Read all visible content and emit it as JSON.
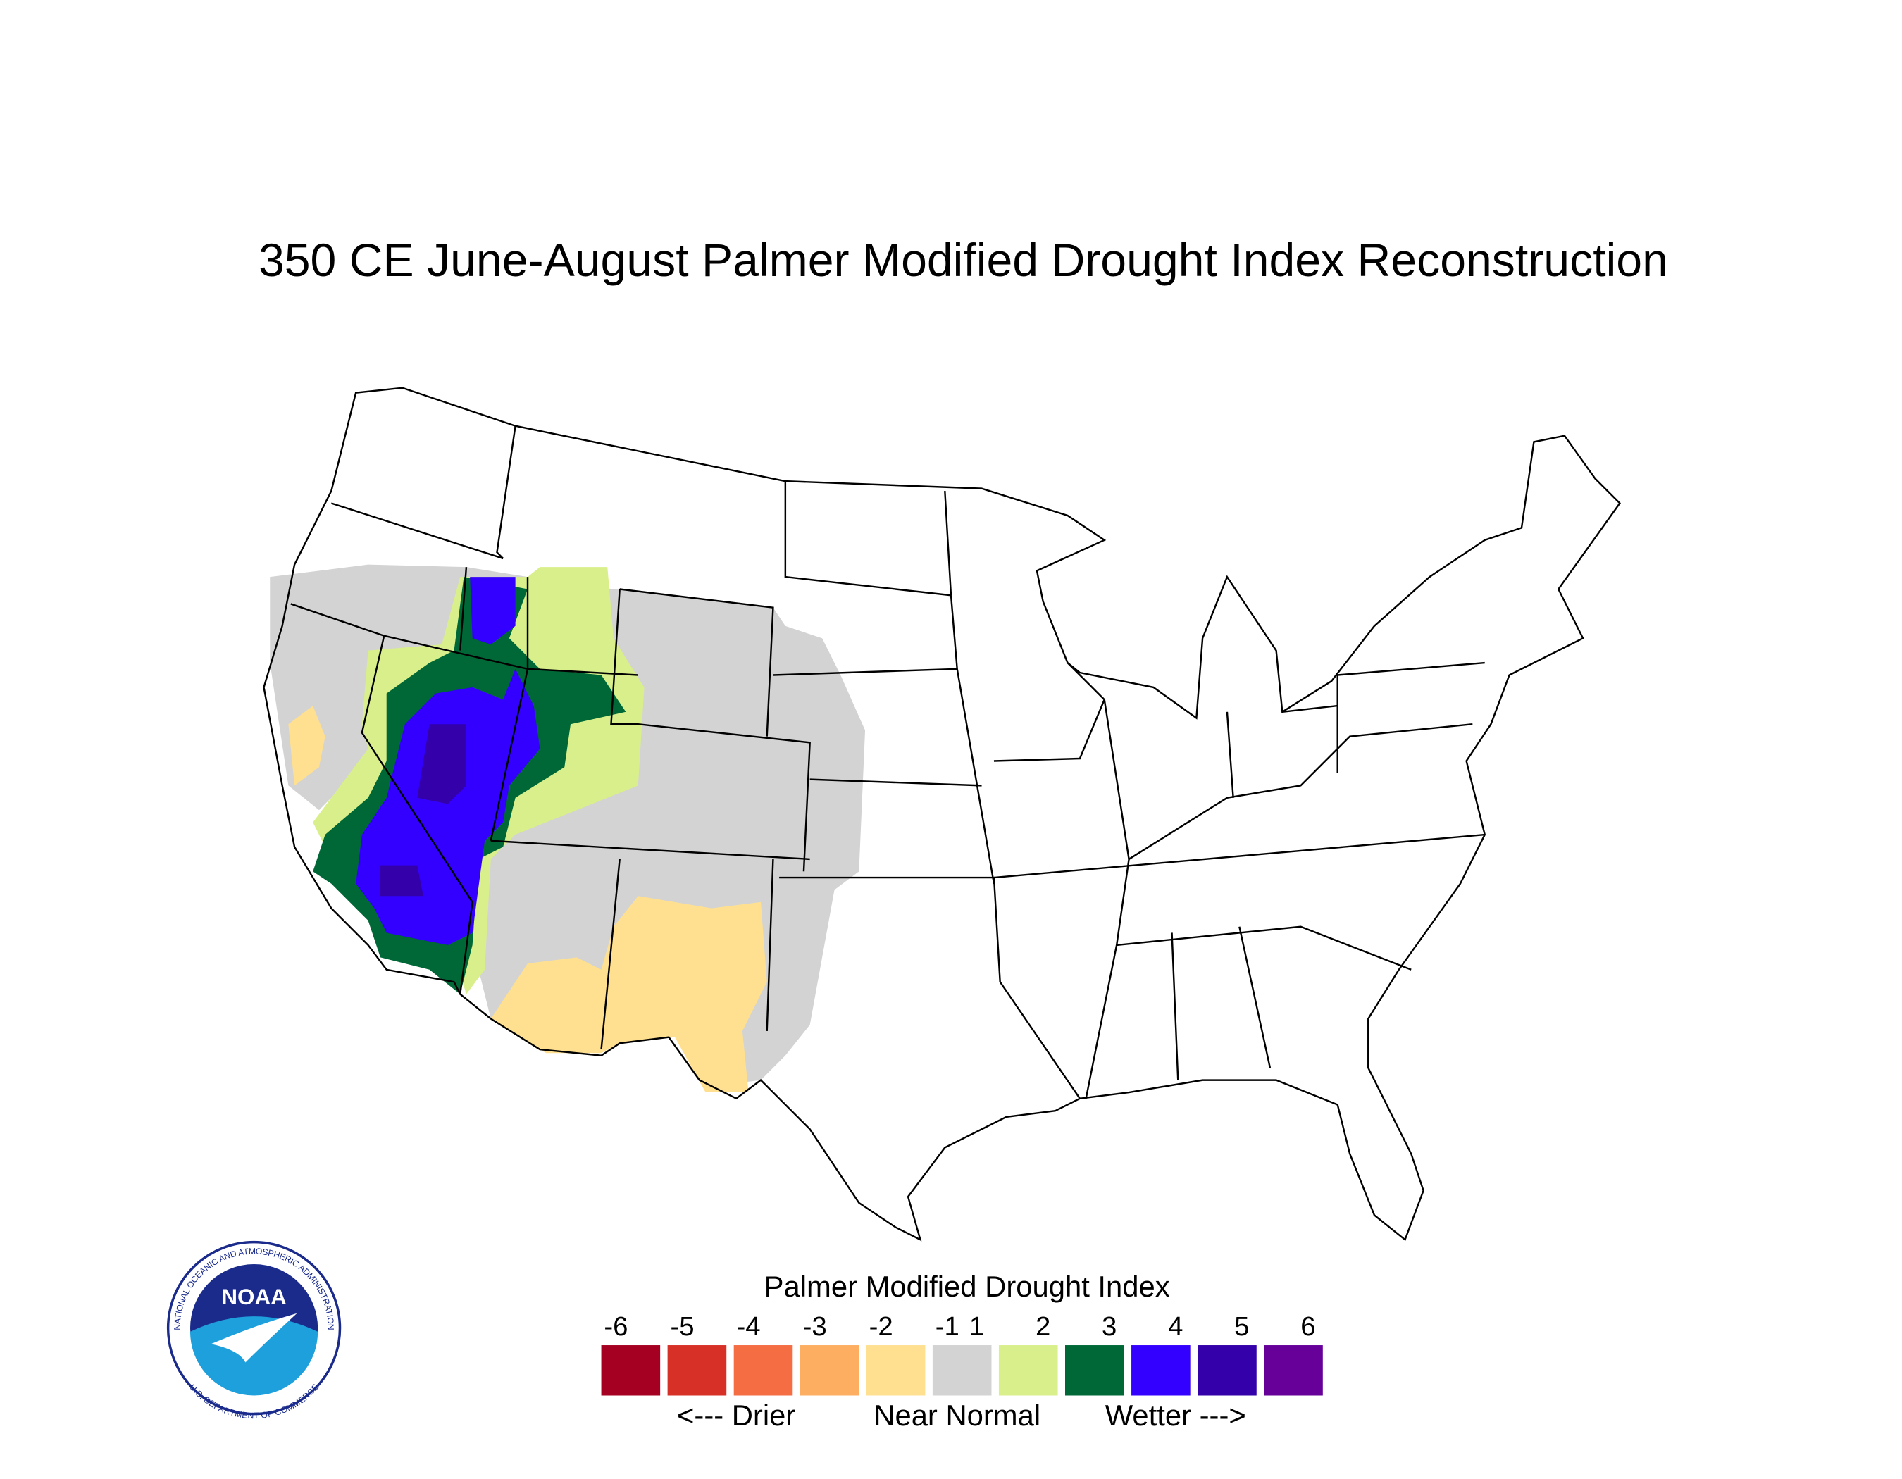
{
  "header": {
    "title": "350 CE  June-August  Palmer Modified Drought Index Reconstruction"
  },
  "legend": {
    "title": "Palmer Modified Drought Index",
    "ticks": [
      -6,
      -5,
      -4,
      -3,
      -2,
      -1,
      1,
      2,
      3,
      4,
      5,
      6
    ],
    "colors": [
      "#a50021",
      "#d73027",
      "#f46d43",
      "#fdae61",
      "#fee090",
      "#d3d3d3",
      "#d9ef8b",
      "#006837",
      "#3300ff",
      "#3300aa",
      "#660099"
    ],
    "captions": [
      "<--- Drier",
      "Near Normal",
      "Wetter --->"
    ]
  },
  "logo": {
    "text": "NOAA",
    "ring_top": "NATIONAL OCEANIC AND ATMOSPHERIC ADMINISTRATION",
    "ring_bottom": "U.S. DEPARTMENT OF COMMERCE"
  }
}
